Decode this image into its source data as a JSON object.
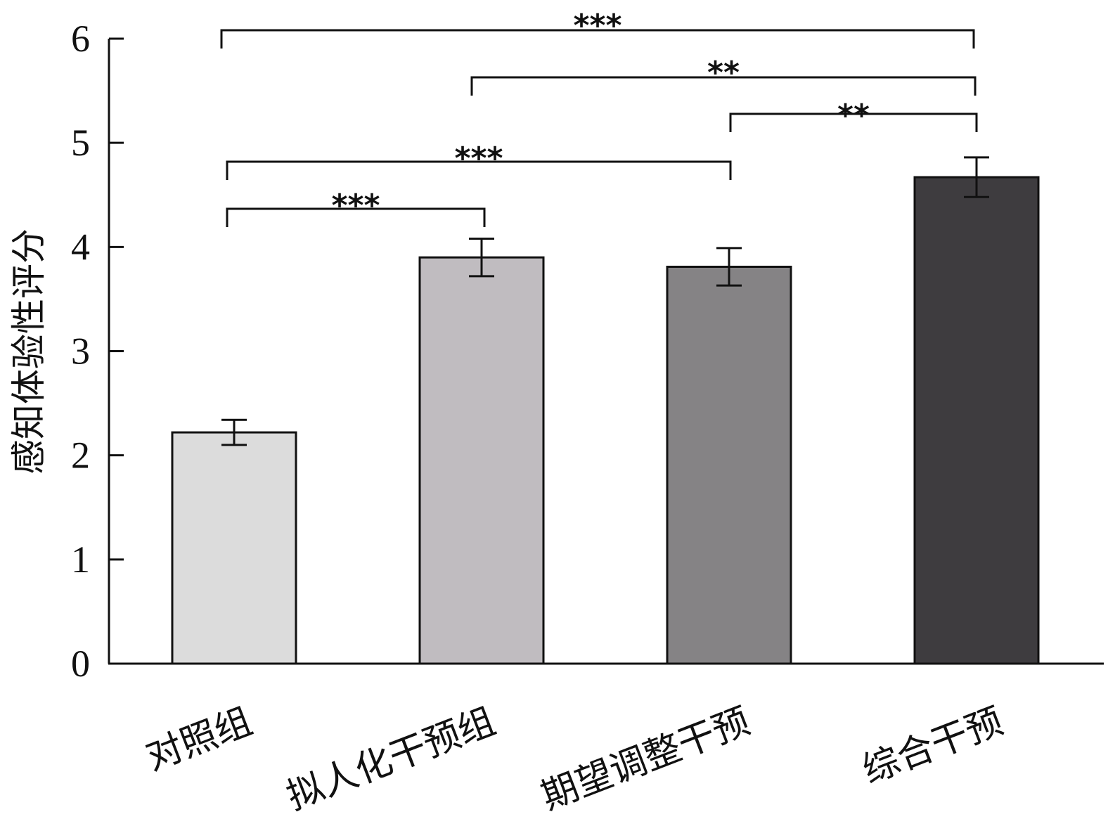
{
  "chart_data": {
    "type": "bar",
    "title": "",
    "xlabel": "",
    "ylabel": "感知体验性评分",
    "ylim": [
      0,
      6
    ],
    "yticks": [
      "0",
      "1",
      "2",
      "3",
      "4",
      "5",
      "6"
    ],
    "grid": false,
    "categories": [
      "对照组",
      "拟人化干预组",
      "期望调整干预",
      "综合干预"
    ],
    "values": [
      2.22,
      3.9,
      3.81,
      4.67
    ],
    "errors": [
      0.12,
      0.18,
      0.18,
      0.19
    ],
    "bar_colors": [
      "#dcdcdc",
      "#c0bcc0",
      "#858385",
      "#3e3c3f"
    ],
    "significance": [
      {
        "from": 0,
        "to": 1,
        "label": "***"
      },
      {
        "from": 0,
        "to": 2,
        "label": "***"
      },
      {
        "from": 2,
        "to": 3,
        "label": "**"
      },
      {
        "from": 1,
        "to": 3,
        "label": "**"
      },
      {
        "from": 0,
        "to": 3,
        "label": "***"
      }
    ]
  }
}
